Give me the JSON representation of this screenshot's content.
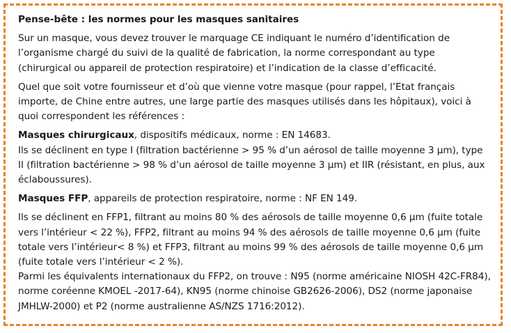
{
  "memo": {
    "title": "Pense-bête : les normes pour les masques sanitaires",
    "para1": "Sur un masque, vous devez trouver le marquage CE indiquant le numéro d’identification de l’organisme chargé du suivi de la qualité de fabrication, la norme correspondant au type (chirurgical ou appareil de protection respiratoire) et l’indication de la classe d’efficacité.",
    "para2": "Quel que soit votre fournisseur et d’où que vienne votre masque (pour rappel, l’Etat français importe, de Chine entre autres, une large partie des masques utilisés dans les hôpitaux), voici à quoi correspondent les références :",
    "surgical": {
      "heading": "Masques chirurgicaux",
      "heading_rest": ", dispositifs médicaux, norme : EN 14683.",
      "text": "Ils se déclinent en type I (filtration bactérienne > 95 % d’un aérosol de taille moyenne 3 µm), type II (filtration bactérienne > 98 % d’un aérosol de taille moyenne 3 µm) et IIR (résistant, en plus, aux éclaboussures)."
    },
    "ffp": {
      "heading": "Masques FFP",
      "heading_rest": ", appareils de protection respiratoire, norme : NF EN 149.",
      "text": "Ils se déclinent en FFP1, filtrant au moins 80 % des aérosols de taille moyenne 0,6 µm (fuite totale vers l’intérieur < 22 %), FFP2, filtrant au moins 94 % des aérosols de taille moyenne 0,6 µm (fuite totale vers l’intérieur< 8 %) et FFP3, filtrant au moins 99 % des aérosols de taille moyenne 0,6 µm (fuite totale vers l’intérieur < 2 %).",
      "equivalents": "Parmi les équivalents internationaux du FFP2, on trouve : N95 (norme américaine NIOSH 42C-FR84), norme coréenne KMOEL -2017-64), KN95 (norme chinoise GB2626-2006), DS2 (norme japonaise JMHLW-2000) et P2 (norme australienne AS/NZS 1716:2012)."
    }
  },
  "colors": {
    "border": "#e8832a",
    "text": "#1a1a1a"
  }
}
